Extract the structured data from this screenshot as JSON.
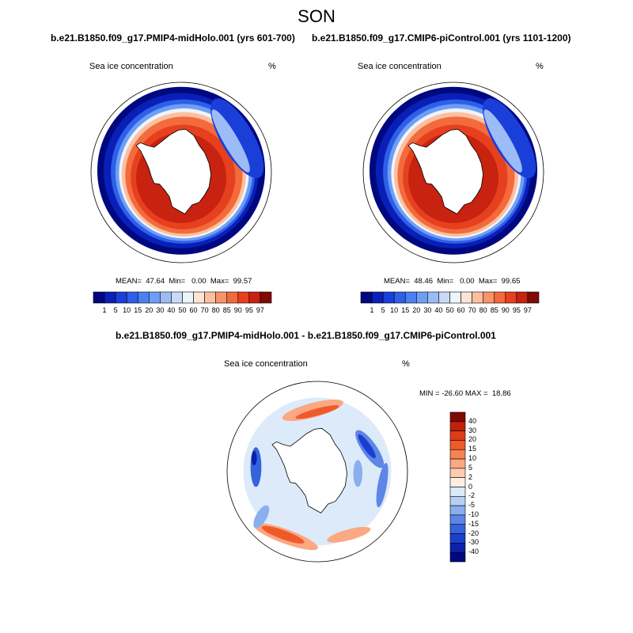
{
  "figure": {
    "title": "SON",
    "panel_left_title": "b.e21.B1850.f09_g17.PMIP4-midHolo.001 (yrs 601-700)",
    "panel_right_title": "b.e21.B1850.f09_g17.CMIP6-piControl.001 (yrs 1101-1200)",
    "panel_diff_title": "b.e21.B1850.f09_g17.PMIP4-midHolo.001 - b.e21.B1850.f09_g17.CMIP6-piControl.001",
    "variable_label": "Sea ice concentration",
    "unit_label": "%"
  },
  "chart_data": [
    {
      "type": "heatmap",
      "projection": "south-polar-stereographic",
      "title": "b.e21.B1850.f09_g17.PMIP4-midHolo.001 (yrs 601-700)",
      "variable": "Sea ice concentration",
      "unit": "%",
      "stats": {
        "mean": "47.64",
        "min": "0.00",
        "max": "99.57"
      },
      "stats_text": "MEAN=  47.64  Min=   0.00  Max=  99.57",
      "levels": [
        "1",
        "5",
        "10",
        "15",
        "20",
        "30",
        "40",
        "50",
        "60",
        "70",
        "80",
        "85",
        "90",
        "95",
        "97"
      ],
      "colors": [
        "#000880",
        "#0a1fb8",
        "#1a3fd8",
        "#2e5fe8",
        "#4a80f0",
        "#6e9ef5",
        "#9cbcf8",
        "#c8daf8",
        "#eef4fb",
        "#fde4d4",
        "#fcc0a0",
        "#f99468",
        "#f36a3c",
        "#e6401e",
        "#c82210",
        "#800a04"
      ],
      "legend_position": "bottom"
    },
    {
      "type": "heatmap",
      "projection": "south-polar-stereographic",
      "title": "b.e21.B1850.f09_g17.CMIP6-piControl.001 (yrs 1101-1200)",
      "variable": "Sea ice concentration",
      "unit": "%",
      "stats": {
        "mean": "48.46",
        "min": "0.00",
        "max": "99.65"
      },
      "stats_text": "MEAN=  48.46  Min=   0.00  Max=  99.65",
      "levels": [
        "1",
        "5",
        "10",
        "15",
        "20",
        "30",
        "40",
        "50",
        "60",
        "70",
        "80",
        "85",
        "90",
        "95",
        "97"
      ],
      "colors": [
        "#000880",
        "#0a1fb8",
        "#1a3fd8",
        "#2e5fe8",
        "#4a80f0",
        "#6e9ef5",
        "#9cbcf8",
        "#c8daf8",
        "#eef4fb",
        "#fde4d4",
        "#fcc0a0",
        "#f99468",
        "#f36a3c",
        "#e6401e",
        "#c82210",
        "#800a04"
      ],
      "legend_position": "bottom"
    },
    {
      "type": "heatmap",
      "projection": "south-polar-stereographic",
      "title": "b.e21.B1850.f09_g17.PMIP4-midHolo.001 - b.e21.B1850.f09_g17.CMIP6-piControl.001",
      "variable": "Sea ice concentration",
      "unit": "%",
      "stats": {
        "min": "-26.60",
        "max": "18.86"
      },
      "stats_text": "MIN = -26.60 MAX =  18.86",
      "levels": [
        "40",
        "30",
        "20",
        "15",
        "10",
        "5",
        "2",
        "0",
        "-2",
        "-5",
        "-10",
        "-15",
        "-20",
        "-30",
        "-40"
      ],
      "colors": [
        "#7f0a04",
        "#c0200c",
        "#e03c18",
        "#f05a2a",
        "#f7824f",
        "#fba883",
        "#fccbb0",
        "#fdeee2",
        "#dceaf9",
        "#b6cff4",
        "#8aaeee",
        "#5d86e6",
        "#3562dd",
        "#1a3fcf",
        "#0a22a8",
        "#000880"
      ],
      "legend_position": "right"
    }
  ]
}
